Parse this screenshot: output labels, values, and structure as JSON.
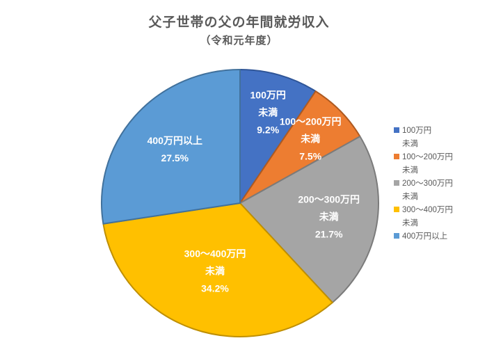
{
  "chart_data": {
    "type": "pie",
    "title": "父子世帯の父の年間就労収入",
    "subtitle": "（令和元年度）",
    "legend_position": "right",
    "title_color": "#595959",
    "legend_text_color": "#595959",
    "direction": "clockwise",
    "start_angle_deg": 0,
    "slices": [
      {
        "category": "100万円未満",
        "value": 9.2,
        "percent_label": "9.2%",
        "data_label_lines": [
          "100万円",
          "未満",
          "9.2%"
        ],
        "legend_lines": [
          "100万円",
          "未満"
        ],
        "color": "#4472C4",
        "border_color": "#2F5597",
        "label_radius_frac": 0.71
      },
      {
        "category": "100～200万円未満",
        "value": 7.5,
        "percent_label": "7.5%",
        "data_label_lines": [
          "100～200万円",
          "未満",
          "7.5%"
        ],
        "legend_lines": [
          "100～200万円",
          "未満"
        ],
        "color": "#ED7D31",
        "border_color": "#AE5A21",
        "label_radius_frac": 0.7
      },
      {
        "category": "200～300万円未満",
        "value": 21.7,
        "percent_label": "21.7%",
        "data_label_lines": [
          "200～300万円",
          "未満",
          "21.7%"
        ],
        "legend_lines": [
          "200～300万円",
          "未満"
        ],
        "color": "#A5A5A5",
        "border_color": "#7B7B7B",
        "label_radius_frac": 0.65
      },
      {
        "category": "300～400万円未満",
        "value": 34.2,
        "percent_label": "34.2%",
        "data_label_lines": [
          "300～400万円",
          "未満",
          "34.2%"
        ],
        "legend_lines": [
          "300～400万円",
          "未満"
        ],
        "color": "#FFC000",
        "border_color": "#BF8F00",
        "label_radius_frac": 0.54
      },
      {
        "category": "400万円以上",
        "value": 27.5,
        "percent_label": "27.5%",
        "data_label_lines": [
          "400万円以上",
          "27.5%"
        ],
        "legend_lines": [
          "400万円以上"
        ],
        "color": "#5B9BD5",
        "border_color": "#41719C",
        "label_radius_frac": 0.62
      }
    ]
  }
}
